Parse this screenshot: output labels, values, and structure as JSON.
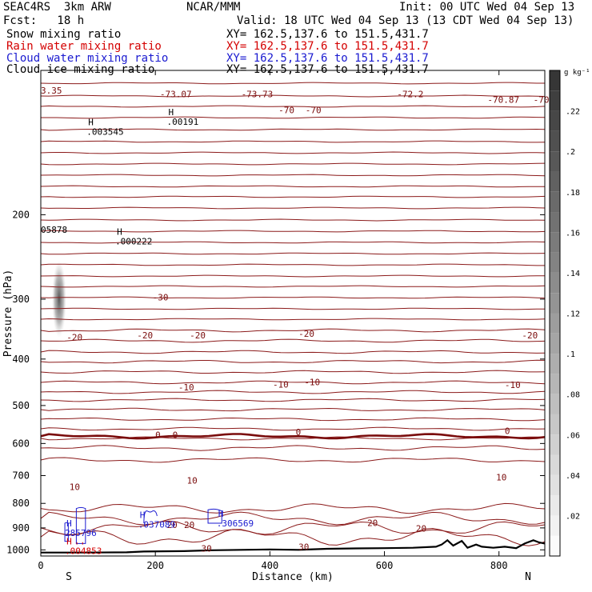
{
  "header": {
    "model": "SEAC4RS  3km ARW",
    "org": "NCAR/MMM",
    "init": "Init: 00 UTC Wed 04 Sep 13",
    "fcst": "Fcst:   18 h",
    "valid": "Valid: 18 UTC Wed 04 Sep 13 (13 CDT Wed 04 Sep 13)",
    "fields": [
      {
        "label": "Snow mixing ratio",
        "xy": "XY= 162.5,137.6 to 151.5,431.7",
        "color": "#000000"
      },
      {
        "label": "Rain water mixing ratio",
        "xy": "XY= 162.5,137.6 to 151.5,431.7",
        "color": "#d40000"
      },
      {
        "label": "Cloud water mixing ratio",
        "xy": "XY= 162.5,137.6 to 151.5,431.7",
        "color": "#1a1ad0"
      },
      {
        "label": "Cloud ice mixing ratio",
        "xy": "XY= 162.5,137.6 to 151.5,431.7",
        "color": "#000000"
      }
    ]
  },
  "chart_data": {
    "type": "cross-section",
    "xlabel": "Distance (km)",
    "ylabel": "Pressure (hPa)",
    "xlim": [
      0,
      880
    ],
    "ylim": [
      1030,
      100
    ],
    "y_log": true,
    "x_ticks": [
      0,
      200,
      400,
      600,
      800
    ],
    "y_ticks": [
      200,
      300,
      400,
      500,
      600,
      700,
      800,
      900,
      1000
    ],
    "end_labels": {
      "left": "S",
      "right": "N"
    },
    "colorbar": {
      "unit": "g kg⁻¹",
      "ticks": [
        ".02",
        ".04",
        ".06",
        ".08",
        ".1",
        ".12",
        ".14",
        ".16",
        ".18",
        ".2",
        ".22"
      ],
      "max": 0.24
    },
    "temperature_labels": [
      {
        "x": 0,
        "p": 110,
        "text": "3.35"
      },
      {
        "x": 208,
        "p": 112,
        "text": "-73.07"
      },
      {
        "x": 350,
        "p": 112,
        "text": "-73.73"
      },
      {
        "x": 622,
        "p": 112,
        "text": "-72.2"
      },
      {
        "x": 780,
        "p": 115,
        "text": "-70.87"
      },
      {
        "x": 860,
        "p": 115,
        "text": "-70"
      },
      {
        "x": 415,
        "p": 121,
        "text": "-70"
      },
      {
        "x": 462,
        "p": 121,
        "text": "-70"
      },
      {
        "x": 195,
        "p": 297,
        "text": "-30"
      },
      {
        "x": 45,
        "p": 360,
        "text": "-20"
      },
      {
        "x": 168,
        "p": 357,
        "text": "-20"
      },
      {
        "x": 260,
        "p": 357,
        "text": "-20"
      },
      {
        "x": 450,
        "p": 354,
        "text": "-20"
      },
      {
        "x": 840,
        "p": 357,
        "text": "-20"
      },
      {
        "x": 240,
        "p": 458,
        "text": "-10"
      },
      {
        "x": 405,
        "p": 452,
        "text": "-10"
      },
      {
        "x": 460,
        "p": 447,
        "text": "-10"
      },
      {
        "x": 810,
        "p": 453,
        "text": "-10"
      },
      {
        "x": 200,
        "p": 575,
        "text": "0"
      },
      {
        "x": 230,
        "p": 575,
        "text": "0"
      },
      {
        "x": 445,
        "p": 568,
        "text": "0"
      },
      {
        "x": 810,
        "p": 565,
        "text": "0"
      },
      {
        "x": 50,
        "p": 739,
        "text": "10"
      },
      {
        "x": 255,
        "p": 716,
        "text": "10"
      },
      {
        "x": 795,
        "p": 706,
        "text": "10"
      },
      {
        "x": 220,
        "p": 886,
        "text": "20"
      },
      {
        "x": 250,
        "p": 886,
        "text": "20"
      },
      {
        "x": 570,
        "p": 878,
        "text": "20"
      },
      {
        "x": 655,
        "p": 903,
        "text": "20"
      },
      {
        "x": 280,
        "p": 993,
        "text": "30"
      },
      {
        "x": 450,
        "p": 986,
        "text": "30"
      }
    ],
    "maxima": [
      {
        "x": 80,
        "p": 131,
        "letter": "H",
        "value": ".003545",
        "color": "#000000"
      },
      {
        "x": 220,
        "p": 125,
        "letter": "H",
        "value": ".00191",
        "color": "#000000"
      },
      {
        "x": 0,
        "p": 210,
        "letter": "",
        "value": "05878",
        "color": "#000000"
      },
      {
        "x": 130,
        "p": 222,
        "letter": "H",
        "value": ".000222",
        "color": "#000000"
      },
      {
        "x": 42,
        "p": 900,
        "letter": "H",
        "value": "285796",
        "color": "#1a1ad0"
      },
      {
        "x": 170,
        "p": 865,
        "letter": "H",
        "value": ".037089",
        "color": "#1a1ad0"
      },
      {
        "x": 307,
        "p": 860,
        "letter": "H",
        "value": ".306569",
        "color": "#1a1ad0"
      },
      {
        "x": 42,
        "p": 982,
        "letter": "H",
        "value": ".004853",
        "color": "#d40000"
      }
    ]
  }
}
